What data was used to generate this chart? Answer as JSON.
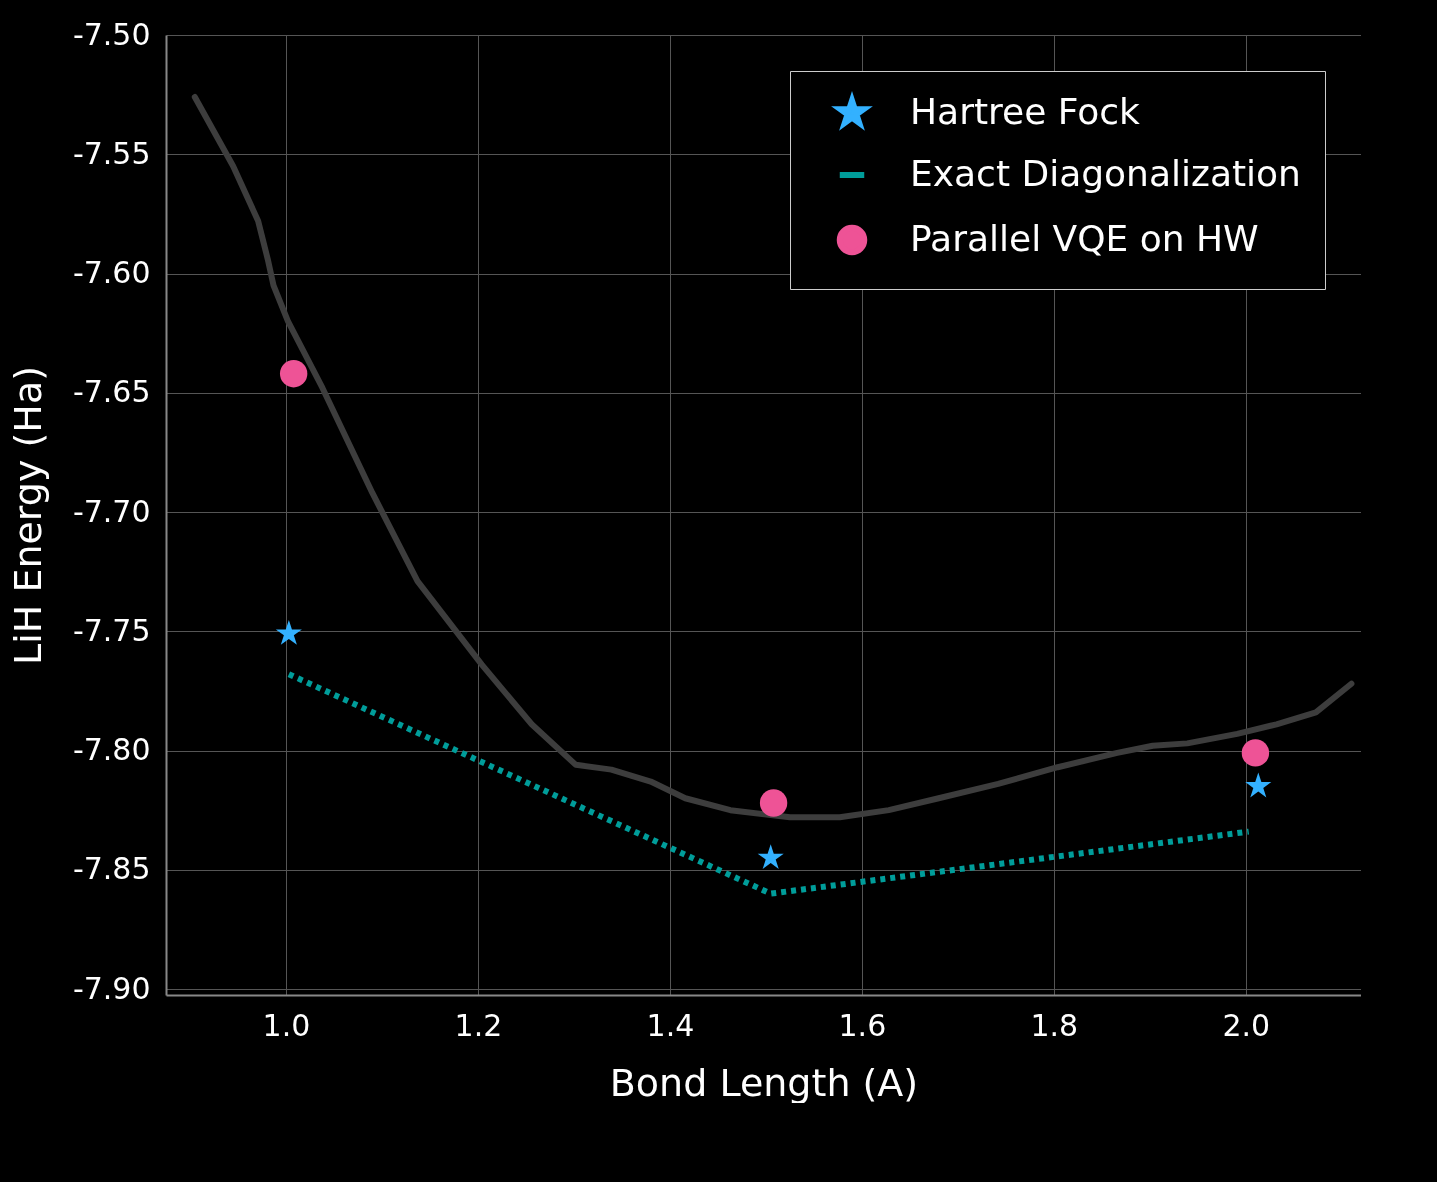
{
  "chart_data": {
    "type": "line",
    "xlabel": "Bond Length (A)",
    "ylabel": "LiH Energy (Ha)",
    "xlim": [
      0.875,
      2.12
    ],
    "ylim": [
      -7.9025,
      -7.5
    ],
    "xticks": [
      {
        "value": 1.0,
        "label": "1.0"
      },
      {
        "value": 1.2,
        "label": "1.2"
      },
      {
        "value": 1.4,
        "label": "1.4"
      },
      {
        "value": 1.6,
        "label": "1.6"
      },
      {
        "value": 1.8,
        "label": "1.8"
      },
      {
        "value": 2.0,
        "label": "2.0"
      }
    ],
    "yticks": [
      {
        "value": -7.5,
        "label": "-7.50"
      },
      {
        "value": -7.55,
        "label": "-7.55"
      },
      {
        "value": -7.6,
        "label": "-7.60"
      },
      {
        "value": -7.65,
        "label": "-7.65"
      },
      {
        "value": -7.7,
        "label": "-7.70"
      },
      {
        "value": -7.75,
        "label": "-7.75"
      },
      {
        "value": -7.8,
        "label": "-7.80"
      },
      {
        "value": -7.85,
        "label": "-7.85"
      },
      {
        "value": -7.9,
        "label": "-7.90"
      }
    ],
    "grid": true,
    "legend": "top right",
    "series": [
      {
        "color": "#3d3d3d",
        "line_style": "solid",
        "x": [
          0.905,
          0.945,
          0.971,
          0.981,
          0.987,
          1.002,
          1.038,
          1.09,
          1.137,
          1.204,
          1.256,
          1.302,
          1.339,
          1.38,
          1.416,
          1.463,
          1.525,
          1.577,
          1.628,
          1.68,
          1.742,
          1.804,
          1.866,
          1.903,
          1.939,
          1.991,
          2.032,
          2.073,
          2.11
        ],
        "values": [
          -7.526,
          -7.555,
          -7.578,
          -7.594,
          -7.605,
          -7.62,
          -7.648,
          -7.692,
          -7.729,
          -7.764,
          -7.789,
          -7.806,
          -7.808,
          -7.813,
          -7.82,
          -7.825,
          -7.828,
          -7.828,
          -7.825,
          -7.82,
          -7.814,
          -7.807,
          -7.801,
          -7.798,
          -7.797,
          -7.793,
          -7.789,
          -7.784,
          -7.772
        ]
      },
      {
        "type": "scatter",
        "name": "Hartree Fock",
        "color": "#33b1ff",
        "marker": "star",
        "x": [
          1.003,
          1.505,
          2.013
        ],
        "values": [
          -7.751,
          -7.845,
          -7.815
        ]
      },
      {
        "name": "Exact Diagonalization",
        "color": "#009d9a",
        "line_style": "dotted",
        "x": [
          1.003,
          1.505,
          2.003
        ],
        "values": [
          -7.768,
          -7.86,
          -7.834
        ]
      },
      {
        "type": "scatter",
        "name": "Parallel VQE on HW",
        "color": "#ee5396",
        "marker": "circle",
        "x": [
          1.008,
          1.508,
          2.01
        ],
        "values": [
          -7.642,
          -7.822,
          -7.801
        ]
      }
    ]
  }
}
